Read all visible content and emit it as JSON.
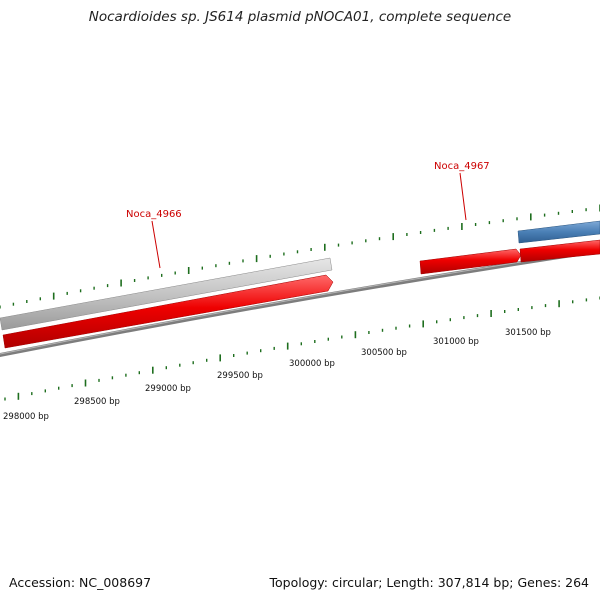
{
  "title": "Nocardioides sp. JS614 plasmid pNOCA01, complete sequence",
  "accession": "Accession: NC_008697",
  "summary": "Topology: circular; Length: 307,814 bp; Genes: 264",
  "gene_labels": [
    "Noca_4966",
    "Noca_4967"
  ],
  "position_labels": [
    "298000 bp",
    "298500 bp",
    "299000 bp",
    "299500 bp",
    "300000 bp",
    "300500 bp",
    "301000 bp",
    "301500 bp"
  ],
  "colors": {
    "backbone": "#808080",
    "gene_forward": "#ee0000",
    "gene_gray": "#bdbdbd",
    "gene_blue": "#4a7fb5",
    "ticks": "#1e6e1e",
    "label_red": "#cc0000"
  }
}
